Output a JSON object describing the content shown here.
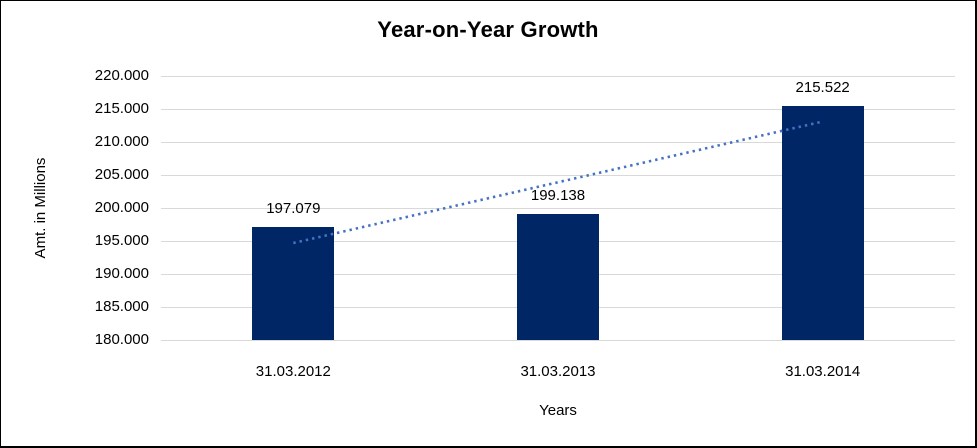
{
  "chart_data": {
    "type": "bar",
    "title": "Year-on-Year Growth",
    "xlabel": "Years",
    "ylabel": "Amt. in Millions",
    "categories": [
      "31.03.2012",
      "31.03.2013",
      "31.03.2014"
    ],
    "values": [
      197.079,
      199.138,
      215.522
    ],
    "value_labels": [
      "197.079",
      "199.138",
      "215.522"
    ],
    "ylim": [
      180,
      220
    ],
    "y_ticks": [
      {
        "value": 220,
        "label": "220.000"
      },
      {
        "value": 215,
        "label": "215.000"
      },
      {
        "value": 210,
        "label": "210.000"
      },
      {
        "value": 205,
        "label": "205.000"
      },
      {
        "value": 200,
        "label": "200.000"
      },
      {
        "value": 195,
        "label": "195.000"
      },
      {
        "value": 190,
        "label": "190.000"
      },
      {
        "value": 185,
        "label": "185.000"
      },
      {
        "value": 180,
        "label": "180.000"
      }
    ],
    "grid": "horizontal",
    "legend": "none",
    "trendline": {
      "type": "linear",
      "style": "dotted",
      "start_value": 194.7,
      "end_value": 213.1
    },
    "colors": {
      "bar": "#002666",
      "trendline": "#4472C4",
      "gridline": "#D9D9D9",
      "text": "#000000",
      "frame_border": "#000000",
      "background": "#FFFFFF"
    }
  }
}
